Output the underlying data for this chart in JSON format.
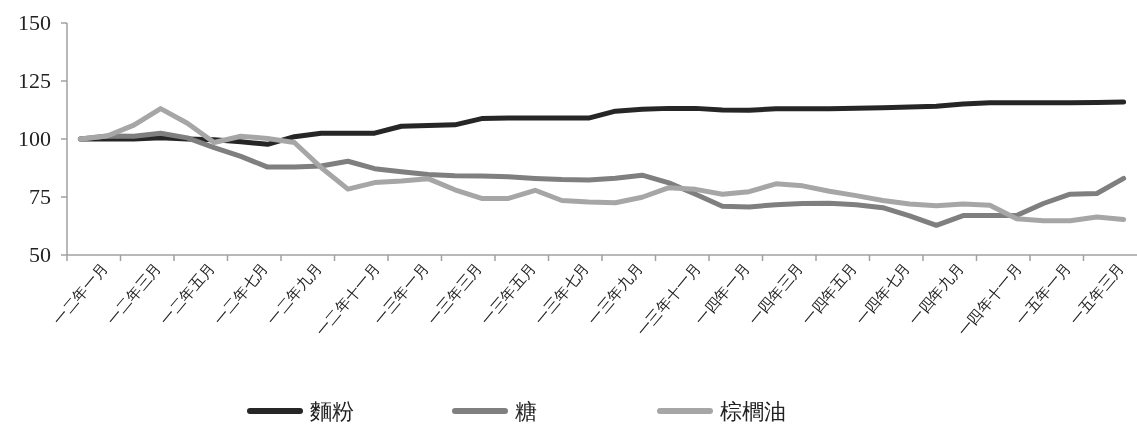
{
  "chart_data": {
    "type": "line",
    "categories": [
      "一二年一月",
      null,
      "一二年三月",
      null,
      "一二年五月",
      null,
      "一二年七月",
      null,
      "一二年九月",
      null,
      "一二年十一月",
      null,
      "一三年一月",
      null,
      "一三年三月",
      null,
      "一三年五月",
      null,
      "一三年七月",
      null,
      "一三年九月",
      null,
      "一三年十一月",
      null,
      "一四年一月",
      null,
      "一四年三月",
      null,
      "一四年五月",
      null,
      "一四年七月",
      null,
      "一四年九月",
      null,
      "一四年十一月",
      null,
      "一五年一月",
      null,
      "一五年三月",
      null
    ],
    "series": [
      {
        "name": "麵粉",
        "color": "#262626",
        "values": [
          100,
          100,
          100,
          100.5,
          100,
          99.7,
          98.8,
          97.7,
          101,
          102.5,
          102.5,
          102.5,
          105.5,
          105.8,
          106.1,
          108.8,
          109,
          109,
          109,
          109,
          112,
          112.8,
          113.2,
          113.2,
          112.5,
          112.4,
          113,
          113,
          113,
          113.3,
          113.5,
          113.8,
          114.1,
          115.1,
          115.6,
          115.6,
          115.6,
          115.6,
          115.7,
          115.9
        ]
      },
      {
        "name": "糖",
        "color": "#7f7f7f",
        "values": [
          100,
          101.3,
          101.2,
          102.5,
          100.5,
          96.3,
          92.5,
          87.9,
          87.9,
          88.4,
          90.4,
          87.2,
          85.9,
          84.7,
          84.2,
          84,
          83.7,
          83,
          82.5,
          82.3,
          83.1,
          84.4,
          81.1,
          76.2,
          71,
          70.7,
          71.7,
          72.2,
          72.3,
          71.7,
          70.4,
          66.9,
          62.8,
          67,
          67,
          67,
          72.2,
          76.2,
          76.5,
          83
        ]
      },
      {
        "name": "棕櫚油",
        "color": "#a6a6a6",
        "values": [
          100,
          101.3,
          106,
          113.1,
          106.8,
          98.5,
          101.2,
          100.2,
          98.5,
          87.7,
          78.4,
          81.2,
          81.9,
          82.9,
          78.1,
          74.4,
          74.4,
          77.9,
          73.5,
          72.8,
          72.5,
          74.9,
          79,
          78.3,
          76.2,
          77.3,
          80.7,
          79.8,
          77.5,
          75.6,
          73.5,
          72,
          71.2,
          72,
          71.4,
          65.6,
          64.8,
          64.8,
          66.4,
          65.3
        ]
      }
    ],
    "ylim": [
      50,
      150
    ],
    "yticks": [
      50,
      75,
      100,
      125,
      150
    ],
    "legend": "bottom"
  }
}
